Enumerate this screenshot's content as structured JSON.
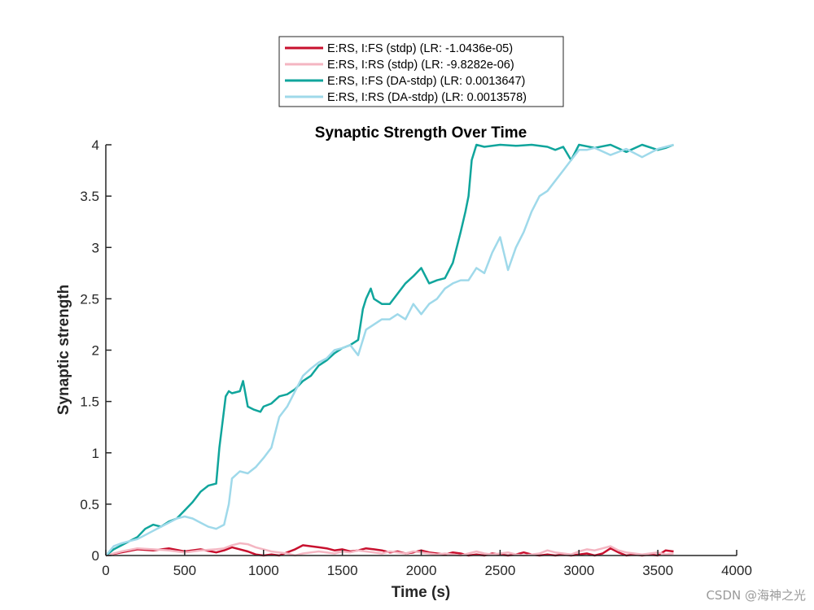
{
  "chart_data": {
    "type": "line",
    "title": "Synaptic Strength Over Time",
    "xlabel": "Time (s)",
    "ylabel": "Synaptic strength",
    "xlim": [
      0,
      4000
    ],
    "ylim": [
      0,
      4
    ],
    "xticks": [
      0,
      500,
      1000,
      1500,
      2000,
      2500,
      3000,
      3500,
      4000
    ],
    "yticks": [
      0,
      0.5,
      1,
      1.5,
      2,
      2.5,
      3,
      3.5,
      4
    ],
    "xtick_labels": [
      "0",
      "500",
      "1000",
      "1500",
      "2000",
      "2500",
      "3000",
      "3500",
      "4000"
    ],
    "ytick_labels": [
      "0",
      "0.5",
      "1",
      "1.5",
      "2",
      "2.5",
      "3",
      "3.5",
      "4"
    ],
    "grid": false,
    "legend_position": "top-center",
    "series": [
      {
        "name": "E:RS, I:FS (stdp) (LR: -1.0436e-05)",
        "color": "#c8102e",
        "x": [
          0,
          100,
          200,
          300,
          400,
          500,
          600,
          700,
          750,
          800,
          850,
          900,
          950,
          1000,
          1050,
          1100,
          1150,
          1200,
          1250,
          1300,
          1350,
          1400,
          1450,
          1500,
          1550,
          1600,
          1650,
          1700,
          1750,
          1800,
          1850,
          1900,
          1950,
          2000,
          2050,
          2100,
          2150,
          2200,
          2250,
          2300,
          2350,
          2400,
          2450,
          2500,
          2550,
          2600,
          2650,
          2700,
          2750,
          2800,
          2850,
          2900,
          2950,
          3000,
          3050,
          3100,
          3150,
          3200,
          3250,
          3300,
          3350,
          3400,
          3450,
          3500,
          3550,
          3600
        ],
        "y": [
          0.0,
          0.03,
          0.06,
          0.05,
          0.07,
          0.04,
          0.06,
          0.03,
          0.05,
          0.08,
          0.06,
          0.04,
          0.01,
          0.0,
          0.01,
          0.0,
          0.03,
          0.06,
          0.1,
          0.09,
          0.08,
          0.07,
          0.05,
          0.06,
          0.04,
          0.05,
          0.07,
          0.06,
          0.05,
          0.03,
          0.04,
          0.02,
          0.03,
          0.05,
          0.03,
          0.02,
          0.01,
          0.03,
          0.02,
          0.0,
          0.01,
          0.0,
          0.02,
          0.01,
          0.0,
          0.01,
          0.03,
          0.01,
          0.0,
          0.01,
          0.0,
          0.01,
          0.0,
          0.01,
          0.02,
          0.0,
          0.02,
          0.07,
          0.03,
          0.0,
          0.01,
          0.0,
          0.01,
          0.0,
          0.05,
          0.04
        ]
      },
      {
        "name": "E:RS, I:RS (stdp) (LR: -9.8282e-06)",
        "color": "#f4b6c2",
        "x": [
          0,
          100,
          200,
          300,
          400,
          500,
          600,
          700,
          750,
          800,
          850,
          900,
          950,
          1000,
          1050,
          1100,
          1150,
          1200,
          1250,
          1300,
          1350,
          1400,
          1450,
          1500,
          1550,
          1600,
          1650,
          1700,
          1750,
          1800,
          1850,
          1900,
          1950,
          2000,
          2050,
          2100,
          2150,
          2200,
          2250,
          2300,
          2350,
          2400,
          2450,
          2500,
          2550,
          2600,
          2650,
          2700,
          2750,
          2800,
          2850,
          2900,
          2950,
          3000,
          3050,
          3100,
          3150,
          3200,
          3250,
          3300,
          3350,
          3400,
          3450,
          3500,
          3550,
          3600
        ],
        "y": [
          0.0,
          0.04,
          0.07,
          0.06,
          0.05,
          0.03,
          0.05,
          0.06,
          0.07,
          0.1,
          0.12,
          0.11,
          0.08,
          0.06,
          0.04,
          0.03,
          0.02,
          0.0,
          0.02,
          0.03,
          0.04,
          0.03,
          0.02,
          0.04,
          0.03,
          0.05,
          0.04,
          0.03,
          0.02,
          0.04,
          0.03,
          0.02,
          0.04,
          0.03,
          0.02,
          0.01,
          0.02,
          0.01,
          0.0,
          0.02,
          0.04,
          0.02,
          0.01,
          0.02,
          0.03,
          0.01,
          0.0,
          0.01,
          0.02,
          0.05,
          0.03,
          0.02,
          0.01,
          0.04,
          0.06,
          0.05,
          0.07,
          0.09,
          0.05,
          0.03,
          0.02,
          0.01,
          0.02,
          0.03,
          0.01,
          0.02
        ]
      },
      {
        "name": "E:RS, I:FS (DA-stdp) (LR: 0.0013647)",
        "color": "#10a59c",
        "x": [
          0,
          50,
          100,
          150,
          200,
          250,
          300,
          350,
          400,
          450,
          500,
          550,
          600,
          650,
          700,
          720,
          740,
          760,
          780,
          800,
          850,
          870,
          900,
          940,
          980,
          1000,
          1050,
          1100,
          1150,
          1200,
          1250,
          1300,
          1350,
          1400,
          1450,
          1500,
          1550,
          1600,
          1630,
          1650,
          1680,
          1700,
          1750,
          1800,
          1850,
          1900,
          1950,
          2000,
          2050,
          2100,
          2150,
          2200,
          2250,
          2280,
          2300,
          2320,
          2340,
          2350,
          2400,
          2500,
          2600,
          2700,
          2800,
          2850,
          2900,
          2950,
          3000,
          3100,
          3200,
          3300,
          3400,
          3500,
          3550,
          3600
        ],
        "y": [
          0.0,
          0.06,
          0.1,
          0.14,
          0.18,
          0.26,
          0.3,
          0.28,
          0.33,
          0.36,
          0.44,
          0.52,
          0.62,
          0.68,
          0.7,
          1.05,
          1.3,
          1.55,
          1.6,
          1.58,
          1.6,
          1.7,
          1.45,
          1.42,
          1.4,
          1.45,
          1.48,
          1.55,
          1.57,
          1.62,
          1.7,
          1.75,
          1.85,
          1.9,
          1.97,
          2.02,
          2.05,
          2.1,
          2.4,
          2.5,
          2.6,
          2.5,
          2.45,
          2.45,
          2.55,
          2.65,
          2.72,
          2.8,
          2.65,
          2.68,
          2.7,
          2.85,
          3.15,
          3.35,
          3.5,
          3.85,
          3.95,
          4.0,
          3.98,
          4.0,
          3.99,
          4.0,
          3.98,
          3.95,
          3.98,
          3.85,
          4.0,
          3.97,
          4.0,
          3.93,
          4.0,
          3.95,
          3.97,
          4.0
        ]
      },
      {
        "name": "E:RS, I:RS (DA-stdp) (LR: 0.0013578)",
        "color": "#9fd9ea",
        "x": [
          0,
          50,
          100,
          150,
          200,
          250,
          300,
          350,
          400,
          450,
          500,
          550,
          600,
          650,
          700,
          750,
          780,
          800,
          850,
          900,
          950,
          1000,
          1050,
          1100,
          1150,
          1200,
          1250,
          1300,
          1350,
          1400,
          1450,
          1500,
          1550,
          1600,
          1650,
          1700,
          1750,
          1800,
          1850,
          1900,
          1950,
          2000,
          2050,
          2100,
          2150,
          2200,
          2250,
          2300,
          2350,
          2400,
          2450,
          2500,
          2550,
          2600,
          2650,
          2700,
          2750,
          2800,
          2850,
          2900,
          2950,
          3000,
          3050,
          3100,
          3200,
          3300,
          3400,
          3500,
          3600
        ],
        "y": [
          0.0,
          0.09,
          0.12,
          0.14,
          0.16,
          0.2,
          0.24,
          0.28,
          0.32,
          0.36,
          0.38,
          0.36,
          0.32,
          0.28,
          0.26,
          0.3,
          0.5,
          0.75,
          0.82,
          0.8,
          0.86,
          0.95,
          1.05,
          1.35,
          1.45,
          1.6,
          1.75,
          1.82,
          1.88,
          1.92,
          2.0,
          2.02,
          2.05,
          1.95,
          2.2,
          2.25,
          2.3,
          2.3,
          2.35,
          2.3,
          2.45,
          2.35,
          2.45,
          2.5,
          2.6,
          2.65,
          2.68,
          2.68,
          2.8,
          2.75,
          2.95,
          3.1,
          2.78,
          3.0,
          3.15,
          3.35,
          3.5,
          3.55,
          3.65,
          3.75,
          3.85,
          3.95,
          3.95,
          3.97,
          3.9,
          3.96,
          3.88,
          3.96,
          4.0
        ]
      }
    ]
  },
  "watermark": "CSDN @海神之光"
}
